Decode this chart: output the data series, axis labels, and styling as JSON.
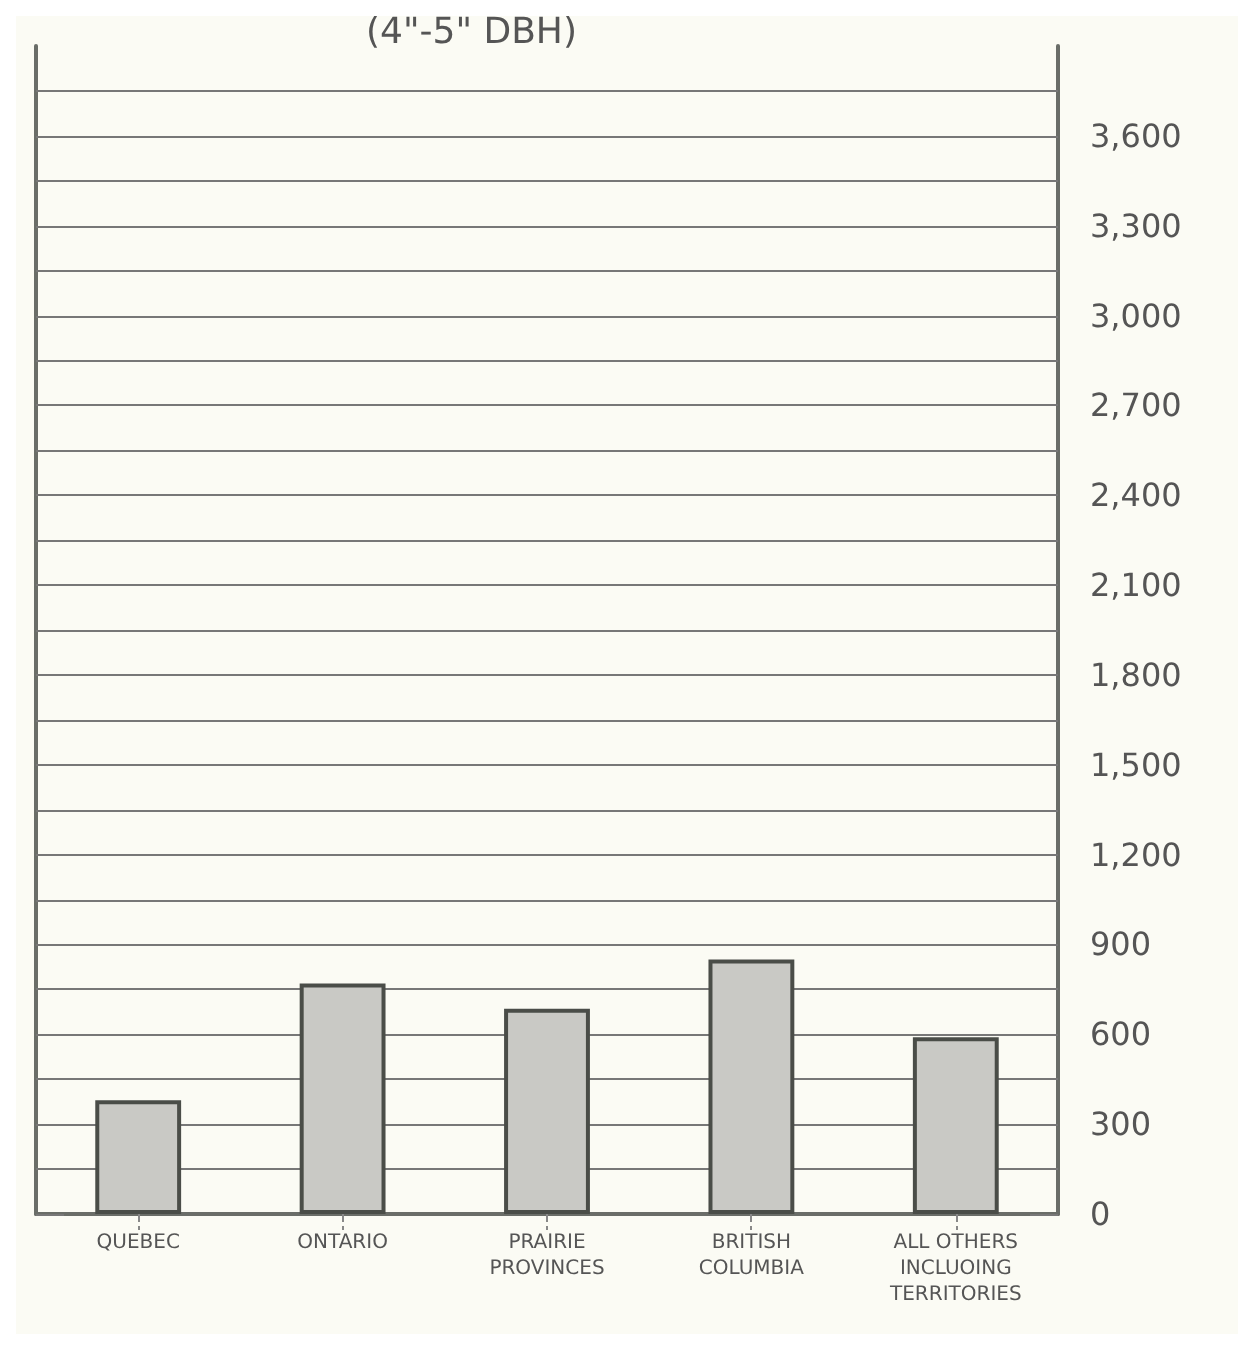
{
  "chart_data": {
    "type": "bar",
    "title": "(4\"-5\" DBH)",
    "categories": [
      "QUEBEC",
      "ONTARIO",
      "PRAIRIE\nPROVINCES",
      "BRITISH\nCOLUMBIA",
      "ALL OTHERS\nINCLUOING\nTERRITORIES"
    ],
    "values": [
      380,
      770,
      685,
      850,
      590
    ],
    "color": "#c9c9c5",
    "ylim": [
      0,
      3900
    ],
    "yticks": [
      0,
      {
        "value": 150,
        "label": null
      },
      300,
      {
        "value": 450,
        "label": null
      },
      600,
      {
        "value": 750,
        "label": null
      },
      900,
      {
        "value": 1050,
        "label": null
      },
      {
        "value": 1200,
        "label": "1,200"
      },
      {
        "value": 1350,
        "label": null
      },
      {
        "value": 1500,
        "label": "1,500"
      },
      {
        "value": 1650,
        "label": null
      },
      {
        "value": 1800,
        "label": "1,800"
      },
      {
        "value": 1950,
        "label": null
      },
      {
        "value": 2100,
        "label": "2,100"
      },
      {
        "value": 2250,
        "label": null
      },
      {
        "value": 2400,
        "label": "2,400"
      },
      {
        "value": 2550,
        "label": null
      },
      {
        "value": 2700,
        "label": "2,700"
      },
      {
        "value": 2850,
        "label": null
      },
      {
        "value": 3000,
        "label": "3,000"
      },
      {
        "value": 3150,
        "label": null
      },
      {
        "value": 3300,
        "label": "3,300"
      },
      {
        "value": 3450,
        "label": null
      },
      {
        "value": 3600,
        "label": "3,600"
      },
      {
        "value": 3750,
        "label": null
      }
    ],
    "grid": "y"
  }
}
